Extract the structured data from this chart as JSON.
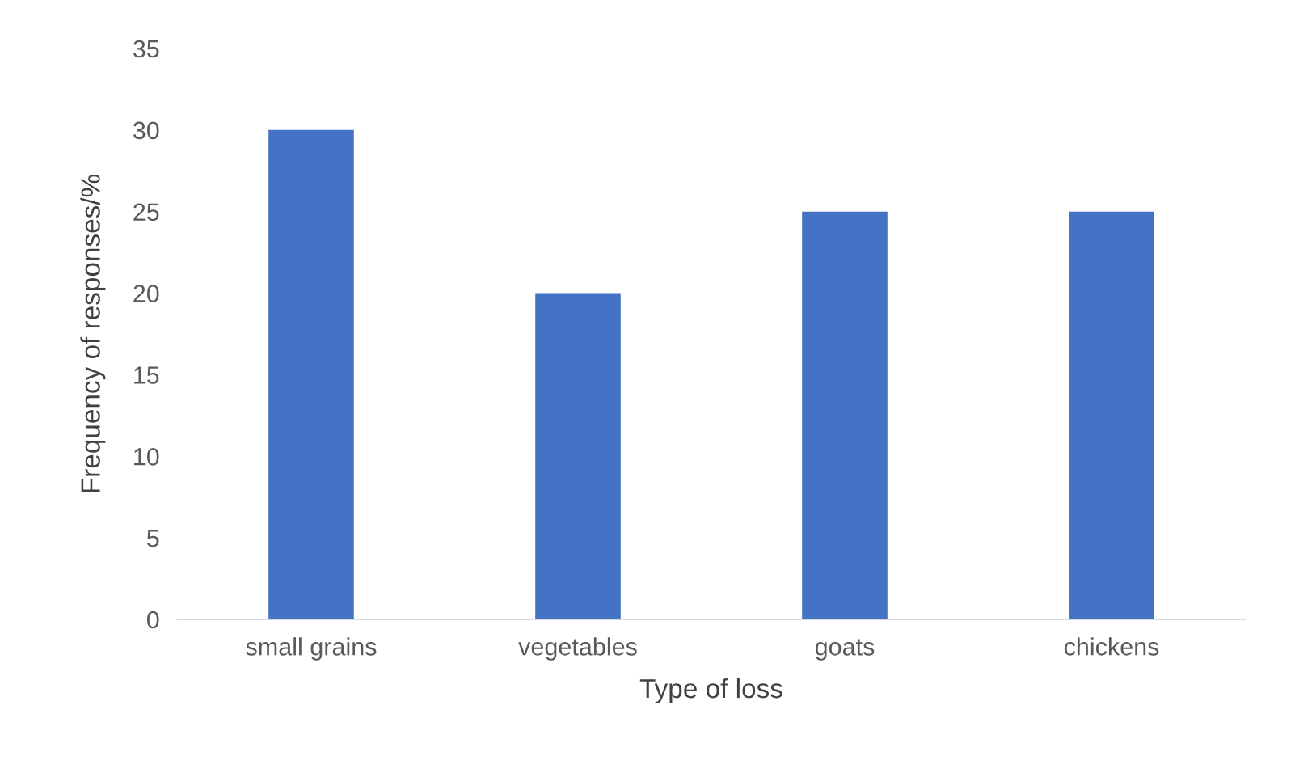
{
  "chart_data": {
    "type": "bar",
    "xlabel": "Type of loss",
    "ylabel": "Frequency of responses/%",
    "categories": [
      "small grains",
      "vegetables",
      "goats",
      "chickens"
    ],
    "values": [
      30,
      20,
      25,
      25
    ],
    "color": "#4472c4",
    "ylim": [
      0,
      35
    ],
    "yticks": [
      0,
      5,
      10,
      15,
      20,
      25,
      30,
      35
    ],
    "grid": false,
    "legend": false
  }
}
